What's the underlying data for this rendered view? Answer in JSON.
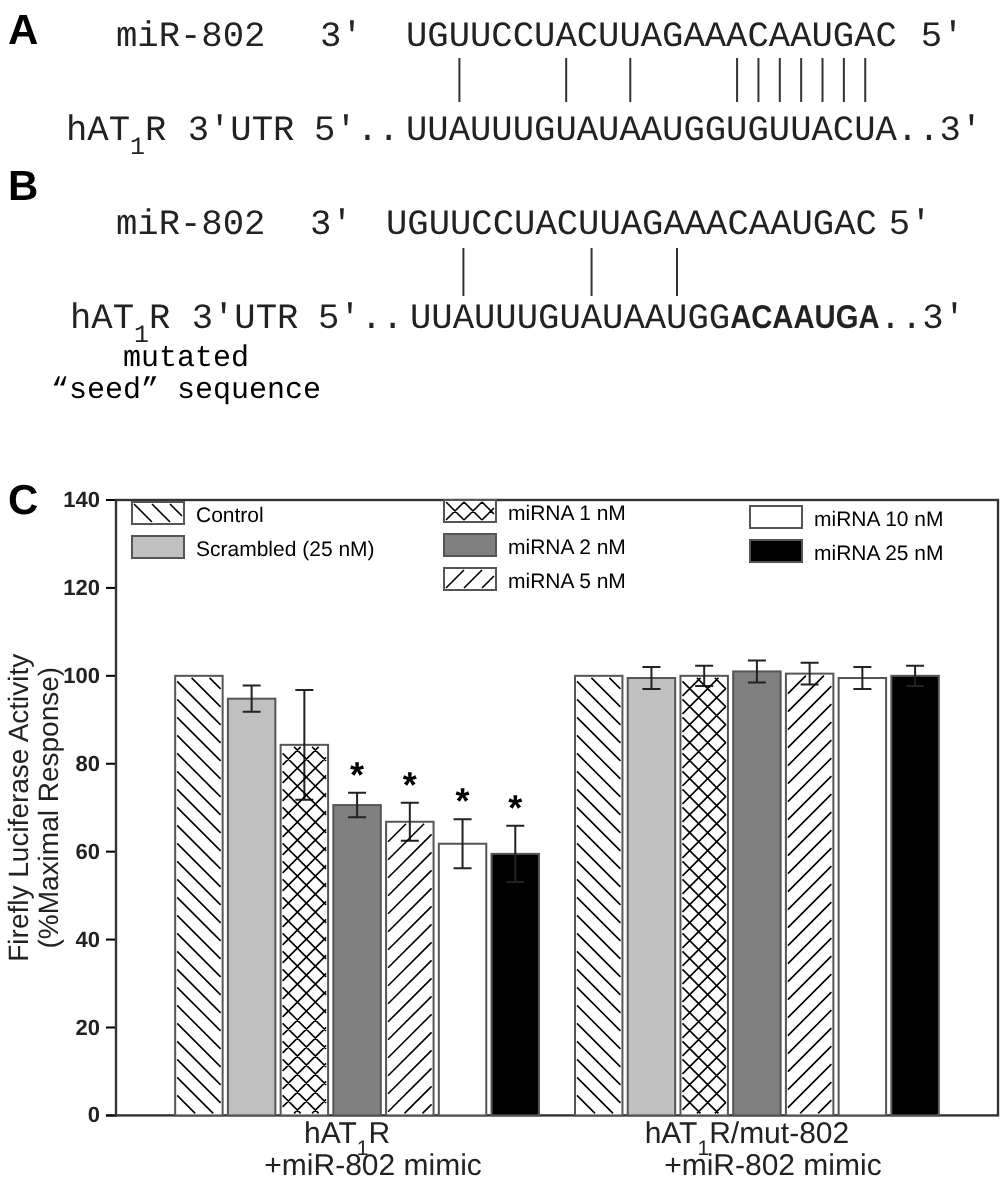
{
  "chart_data": [
    {
      "type": "other",
      "title": "A",
      "annotations": [
        "miR-802",
        "3′",
        "UGUUCCUACUUAGAAACAAUGAC",
        "5′",
        "hAT$_{1}$R 3′UTR",
        "5′..",
        "UUAUUUGUAUAAUGGUGUUACUA",
        "..3′"
      ]
    },
    {
      "type": "other",
      "title": "B",
      "annotations": [
        "miR-802",
        "3′",
        "UGUUCCUACUUAGAAACAAUGAC",
        "5′",
        "hAT$_{1}$R 3′UTR",
        "5′..",
        "UUAUUUGUAUAAUGG",
        "ACAAUGA",
        "..3′",
        "mutated “seed” sequence"
      ]
    },
    {
      "type": "bar",
      "title": "C",
      "ylabel": "Firefly Luciferase Activity (%Maximal Response)",
      "categories": [
        "hAT$_{1}$R +miR-802 mimic",
        "hAT$_{1}$R/mut-802 +miR-802 mimic"
      ],
      "ylim": [
        0,
        140
      ],
      "yticks": [
        0,
        20,
        40,
        60,
        80,
        100,
        120,
        140
      ],
      "legend": "top",
      "series": [
        {
          "name": "Control",
          "color": "#ffffff",
          "values": [
            100,
            100
          ]
        },
        {
          "name": "Scrambled (25 nM)",
          "color": "#c0c0c0",
          "values": [
            94.8,
            99.5
          ],
          "errors": [
            3,
            2.5
          ]
        },
        {
          "name": "miRNA 1 nM",
          "color": "#ffffff",
          "values": [
            84.3,
            100
          ],
          "errors": [
            12.5,
            2.3
          ]
        },
        {
          "name": "miRNA 2 nM",
          "color": "#808080",
          "values": [
            70.6,
            101
          ],
          "errors": [
            2.8,
            2.5
          ],
          "value_labels": [
            "*",
            null
          ]
        },
        {
          "name": "miRNA 5 nM",
          "color": "#ffffff",
          "values": [
            66.8,
            100.5
          ],
          "errors": [
            4.3,
            2.5
          ],
          "value_labels": [
            "*",
            null
          ]
        },
        {
          "name": "miRNA 10 nM",
          "color": "#ffffff",
          "values": [
            61.8,
            99.5
          ],
          "errors": [
            5.6,
            2.5
          ],
          "value_labels": [
            "*",
            null
          ]
        },
        {
          "name": "miRNA 25 nM",
          "color": "#000000",
          "values": [
            59.5,
            100
          ],
          "errors": [
            6.4,
            2.3
          ],
          "value_labels": [
            "*",
            null
          ]
        }
      ]
    }
  ]
}
